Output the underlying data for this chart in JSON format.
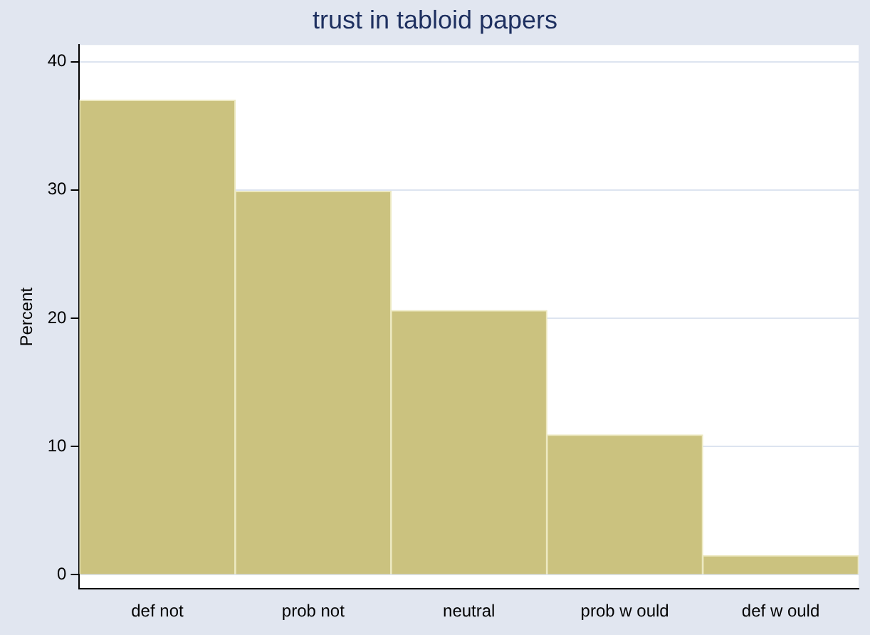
{
  "chart_data": {
    "type": "bar",
    "title": "trust in tabloid papers",
    "ylabel": "Percent",
    "categories": [
      "def not",
      "prob not",
      "neutral",
      "prob w ould",
      "def w ould"
    ],
    "values": [
      37.0,
      29.9,
      20.6,
      10.9,
      1.5
    ],
    "color": "#cbc27f",
    "ylim": [
      -1.1,
      41.3
    ],
    "yticks": [
      0,
      10,
      20,
      30,
      40
    ],
    "grid": "y"
  }
}
